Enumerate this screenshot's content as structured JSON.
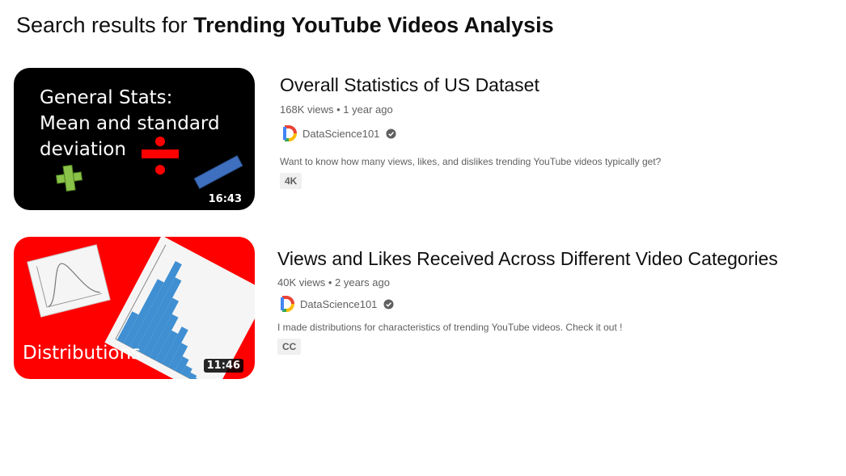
{
  "search": {
    "prefix": "Search results for ",
    "query": "Trending YouTube Videos Analysis"
  },
  "colors": {
    "channel_logo": [
      "#ea4335",
      "#fbbc05",
      "#34a853",
      "#4285f4"
    ],
    "thumb1_bg": "#000000",
    "thumb2_bg": "#ff0000"
  },
  "results": [
    {
      "thumbnail_text": "General Stats:\nMean and standard\ndeviation",
      "duration": "16:43",
      "title": "Overall Statistics of US Dataset",
      "views": "168K views",
      "age": "1 year ago",
      "channel": "DataScience101",
      "description": "Want to know how many views, likes, and dislikes trending YouTube videos typically get?",
      "badge": "4K"
    },
    {
      "thumbnail_text": "Distributions",
      "duration": "11:46",
      "title": "Views and Likes Received Across Different Video Categories",
      "views": "40K views",
      "age": "2 years ago",
      "channel": "DataScience101",
      "description": "I made distributions for characteristics of trending YouTube videos. Check it out !",
      "badge": "CC"
    }
  ]
}
